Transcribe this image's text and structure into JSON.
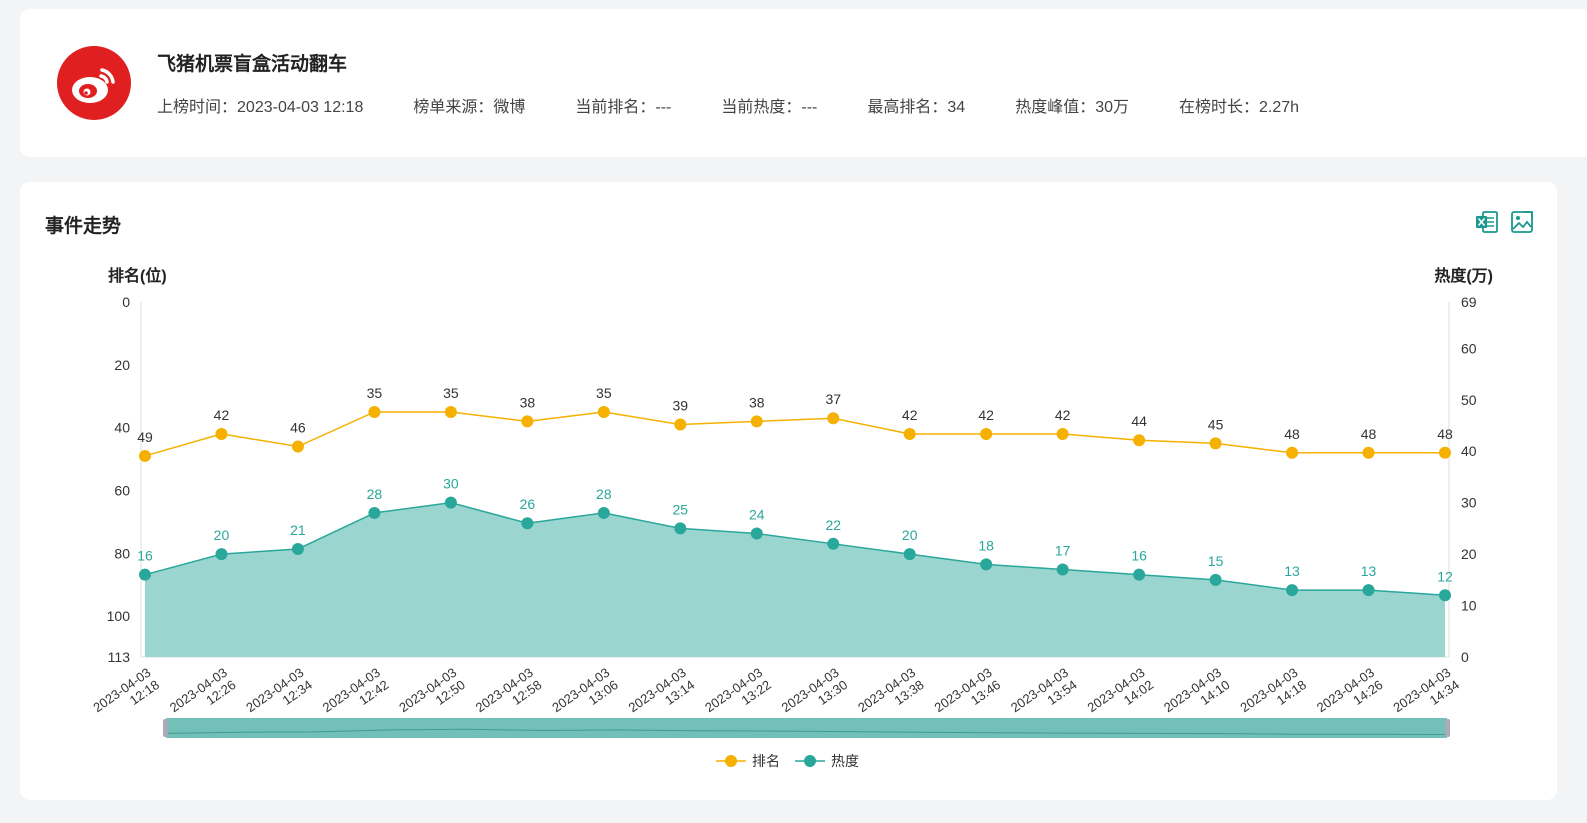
{
  "header": {
    "title": "飞猪机票盲盒活动翻车",
    "logo_icon": "weibo-logo-icon",
    "meta": [
      {
        "label": "上榜时间：",
        "value": "2023-04-03 12:18"
      },
      {
        "label": "榜单来源：",
        "value": "微博"
      },
      {
        "label": "当前排名：",
        "value": "---"
      },
      {
        "label": "当前热度：",
        "value": "---"
      },
      {
        "label": "最高排名：",
        "value": "34"
      },
      {
        "label": "热度峰值：",
        "value": "30万"
      },
      {
        "label": "在榜时长：",
        "value": "2.27h"
      }
    ]
  },
  "section": {
    "title": "事件走势",
    "export_excel_icon": "excel-export-icon",
    "export_image_icon": "image-export-icon"
  },
  "colors": {
    "rank": "#f5b000",
    "heat": "#2aa79b",
    "heat_fill": "#9bd5d0",
    "logo": "#e02020"
  },
  "chart_data": {
    "type": "line",
    "left_axis": {
      "label": "排名(位)",
      "min": 0,
      "max": 113,
      "inverted": true,
      "ticks": [
        0,
        20,
        40,
        60,
        80,
        100,
        113
      ]
    },
    "right_axis": {
      "label": "热度(万)",
      "min": 0,
      "max": 69,
      "ticks": [
        0,
        10,
        20,
        30,
        40,
        50,
        60,
        69
      ]
    },
    "x": [
      "2023-04-03 12:18",
      "2023-04-03 12:26",
      "2023-04-03 12:34",
      "2023-04-03 12:42",
      "2023-04-03 12:50",
      "2023-04-03 12:58",
      "2023-04-03 13:06",
      "2023-04-03 13:14",
      "2023-04-03 13:22",
      "2023-04-03 13:30",
      "2023-04-03 13:38",
      "2023-04-03 13:46",
      "2023-04-03 13:54",
      "2023-04-03 14:02",
      "2023-04-03 14:10",
      "2023-04-03 14:18",
      "2023-04-03 14:26",
      "2023-04-03 14:34"
    ],
    "series": [
      {
        "name": "排名",
        "axis": "left",
        "values": [
          49,
          42,
          46,
          35,
          35,
          38,
          35,
          39,
          38,
          37,
          42,
          42,
          42,
          44,
          45,
          48,
          48,
          48
        ]
      },
      {
        "name": "热度",
        "axis": "right",
        "type": "area",
        "values": [
          16,
          20,
          21,
          28,
          30,
          26,
          28,
          25,
          24,
          22,
          20,
          18,
          17,
          16,
          15,
          13,
          13,
          12
        ]
      }
    ],
    "legend": "bottom-center",
    "grid": false,
    "data_zoom": true
  }
}
